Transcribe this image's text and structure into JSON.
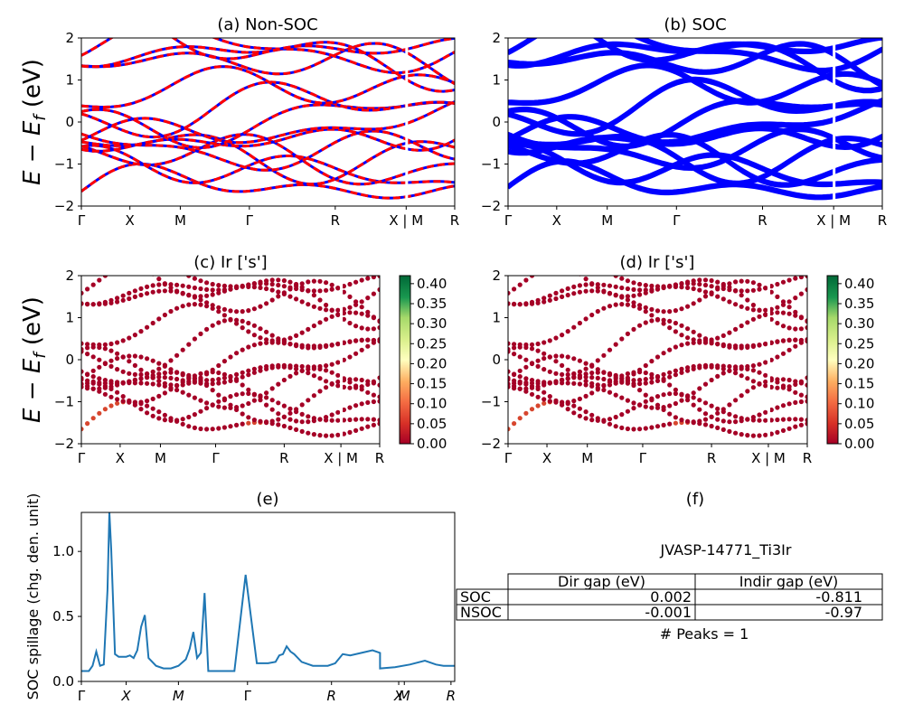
{
  "panels": {
    "a": {
      "title": "(a) Non-SOC"
    },
    "b": {
      "title": "(b) SOC"
    },
    "c": {
      "title": "(c)  Ir ['s']"
    },
    "d": {
      "title": "(d) Ir ['s']"
    },
    "e": {
      "title": "(e)",
      "ylabel": "SOC spillage (chg. den. unit)"
    },
    "f": {
      "title": "(f)",
      "material": "JVASP-14771_Ti3Ir",
      "peaks": "# Peaks = 1"
    }
  },
  "band_ylabel": "E − E_f (eV)",
  "kpath_labels": [
    "Γ",
    "X",
    "M",
    "Γ",
    "R",
    "X | M",
    "R"
  ],
  "spillage_klabels": [
    "Γ",
    "X",
    "M",
    "Γ",
    "R",
    "X",
    "M",
    "R"
  ],
  "colorbar_ticks": [
    "0.00",
    "0.05",
    "0.10",
    "0.15",
    "0.20",
    "0.25",
    "0.30",
    "0.35",
    "0.40"
  ],
  "table": {
    "headers": [
      "",
      "Dir gap (eV)",
      "Indir gap (eV)"
    ],
    "rows": [
      [
        "SOC",
        "0.002",
        "-0.811"
      ],
      [
        "NSOC",
        "-0.001",
        "-0.97"
      ]
    ]
  },
  "colors": {
    "nonsoc": "#ff0000",
    "soc": "#0000ff",
    "spillage": "#1f77b4",
    "proj_low": "#a50026"
  },
  "chart_data": [
    {
      "type": "line",
      "title": "(a) Non-SOC",
      "ylabel": "E − E_f (eV)",
      "ylim": [
        -2,
        2
      ],
      "yticks": [
        -2,
        -1,
        0,
        1,
        2
      ],
      "x_labels": [
        "Γ",
        "X",
        "M",
        "Γ",
        "R",
        "X | M",
        "R"
      ]
    },
    {
      "type": "line",
      "title": "(b) SOC",
      "ylim": [
        -2,
        2
      ],
      "yticks": [
        -2,
        -1,
        0,
        1,
        2
      ],
      "x_labels": [
        "Γ",
        "X",
        "M",
        "Γ",
        "R",
        "X | M",
        "R"
      ]
    },
    {
      "type": "scatter",
      "title": "(c)  Ir ['s']",
      "ylabel": "E − E_f (eV)",
      "ylim": [
        -2,
        2
      ],
      "yticks": [
        -2,
        -1,
        0,
        1,
        2
      ],
      "colorbar_range": [
        0,
        0.42
      ],
      "x_labels": [
        "Γ",
        "X",
        "M",
        "Γ",
        "R",
        "X | M",
        "R"
      ]
    },
    {
      "type": "scatter",
      "title": "(d) Ir ['s']",
      "ylim": [
        -2,
        2
      ],
      "yticks": [
        -2,
        -1,
        0,
        1,
        2
      ],
      "colorbar_range": [
        0,
        0.42
      ],
      "x_labels": [
        "Γ",
        "X",
        "M",
        "Γ",
        "R",
        "X | M",
        "R"
      ]
    },
    {
      "type": "line",
      "title": "(e)",
      "ylabel": "SOC spillage (chg. den. unit)",
      "ylim": [
        0,
        1.3
      ],
      "yticks": [
        0.0,
        0.5,
        1.0
      ],
      "x_labels": [
        "Γ",
        "X",
        "M",
        "Γ",
        "R",
        "X",
        "M",
        "R"
      ],
      "x": [
        0.0,
        0.02,
        0.03,
        0.04,
        0.05,
        0.06,
        0.07,
        0.075,
        0.08,
        0.09,
        0.1,
        0.12,
        0.13,
        0.14,
        0.15,
        0.16,
        0.17,
        0.18,
        0.2,
        0.22,
        0.24,
        0.26,
        0.28,
        0.29,
        0.3,
        0.31,
        0.32,
        0.33,
        0.34,
        0.35,
        0.36,
        0.38,
        0.41,
        0.44,
        0.47,
        0.49,
        0.5,
        0.52,
        0.53,
        0.54,
        0.55,
        0.56,
        0.57,
        0.59,
        0.62,
        0.66,
        0.68,
        0.7,
        0.72,
        0.75,
        0.78,
        0.8,
        0.8,
        0.84,
        0.88,
        0.92,
        0.95,
        0.97,
        1.0
      ],
      "y": [
        0.08,
        0.08,
        0.12,
        0.23,
        0.12,
        0.13,
        0.7,
        1.3,
        1.02,
        0.21,
        0.19,
        0.19,
        0.2,
        0.18,
        0.24,
        0.42,
        0.51,
        0.18,
        0.12,
        0.1,
        0.1,
        0.12,
        0.17,
        0.25,
        0.38,
        0.18,
        0.22,
        0.68,
        0.08,
        0.08,
        0.08,
        0.08,
        0.08,
        0.82,
        0.14,
        0.14,
        0.14,
        0.15,
        0.2,
        0.21,
        0.27,
        0.23,
        0.21,
        0.15,
        0.12,
        0.12,
        0.14,
        0.21,
        0.2,
        0.22,
        0.24,
        0.22,
        0.1,
        0.11,
        0.13,
        0.16,
        0.13,
        0.12,
        0.12
      ]
    },
    {
      "type": "table",
      "title": "(f)"
    }
  ]
}
